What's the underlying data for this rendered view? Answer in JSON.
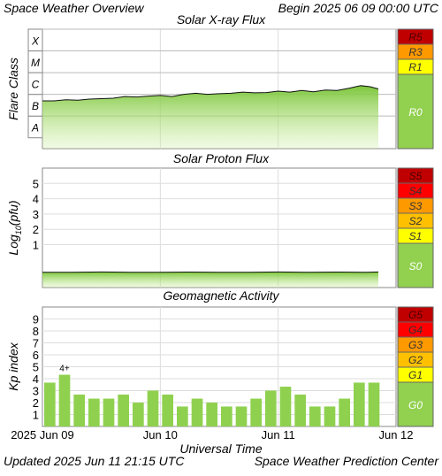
{
  "header": {
    "title": "Space Weather Overview",
    "begin": "Begin 2025 06 09 00:00 UTC"
  },
  "footer": {
    "updated": "Updated 2025 Jun 11 21:15 UTC",
    "center": "Space Weather Prediction Center"
  },
  "colors": {
    "green_fill": "#8fd14f",
    "scale_green": "#92d050",
    "scale_yellow": "#ffff00",
    "scale_gold": "#ffc000",
    "scale_orange": "#ff9900",
    "scale_red": "#ff0000",
    "scale_darkred": "#c00000",
    "grid": "#dddddd"
  },
  "chart_data": [
    {
      "type": "area",
      "title": "Solar X-ray Flux",
      "ylabel": "Flare Class",
      "y_classes": [
        "A",
        "B",
        "C",
        "M",
        "X"
      ],
      "ylim": [
        -8.5,
        -3
      ],
      "y_scale": "log10 flux (W/m2)",
      "x_ticks": [
        "2025 Jun 09",
        "Jun 10",
        "Jun 11",
        "Jun 12"
      ],
      "x_range_days": [
        0,
        3
      ],
      "series": [
        {
          "x": [
            0.0,
            0.1,
            0.2,
            0.3,
            0.4,
            0.5,
            0.6,
            0.7,
            0.8,
            0.9,
            1.0,
            1.1,
            1.2,
            1.3,
            1.4,
            1.5,
            1.6,
            1.7,
            1.8,
            1.9,
            2.0,
            2.1,
            2.2,
            2.3,
            2.4,
            2.5,
            2.6,
            2.7,
            2.78,
            2.85
          ],
          "y": [
            -6.3,
            -6.3,
            -6.25,
            -6.27,
            -6.22,
            -6.2,
            -6.18,
            -6.1,
            -6.12,
            -6.08,
            -6.05,
            -6.1,
            -6.0,
            -5.95,
            -6.0,
            -5.97,
            -5.95,
            -5.9,
            -5.93,
            -5.92,
            -5.85,
            -5.9,
            -5.82,
            -5.88,
            -5.8,
            -5.82,
            -5.72,
            -5.6,
            -5.65,
            -5.75
          ]
        }
      ],
      "scale_levels": [
        {
          "label": "R5",
          "color": "#c00000"
        },
        {
          "label": "R3",
          "color": "#ff9900"
        },
        {
          "label": "R1",
          "color": "#ffff00"
        },
        {
          "label": "R0",
          "color": "#92d050"
        }
      ]
    },
    {
      "type": "area",
      "title": "Solar Proton Flux",
      "ylabel": "Log10(pfu)",
      "yticks": [
        1,
        2,
        3,
        4,
        5
      ],
      "ylim": [
        -1.8,
        6
      ],
      "x_ticks": [
        "2025 Jun 09",
        "Jun 10",
        "Jun 11",
        "Jun 12"
      ],
      "x_range_days": [
        0,
        3
      ],
      "series": [
        {
          "x": [
            0.0,
            0.25,
            0.5,
            0.75,
            1.0,
            1.25,
            1.5,
            1.75,
            2.0,
            2.25,
            2.5,
            2.75,
            2.85
          ],
          "y": [
            -0.8,
            -0.8,
            -0.78,
            -0.8,
            -0.8,
            -0.79,
            -0.8,
            -0.8,
            -0.78,
            -0.8,
            -0.79,
            -0.8,
            -0.78
          ]
        }
      ],
      "scale_levels": [
        {
          "label": "S5",
          "color": "#c00000"
        },
        {
          "label": "S4",
          "color": "#ff0000"
        },
        {
          "label": "S3",
          "color": "#ff9900"
        },
        {
          "label": "S2",
          "color": "#ffc000"
        },
        {
          "label": "S1",
          "color": "#ffff00"
        },
        {
          "label": "S0",
          "color": "#92d050"
        }
      ]
    },
    {
      "type": "bar",
      "title": "Geomagnetic Activity",
      "ylabel": "Kp index",
      "xlabel": "Universal Time",
      "yticks": [
        1,
        2,
        3,
        4,
        5,
        6,
        7,
        8,
        9
      ],
      "ylim": [
        0,
        10
      ],
      "x_ticks": [
        "2025 Jun 09",
        "Jun 10",
        "Jun 11",
        "Jun 12"
      ],
      "values": [
        3.67,
        4.33,
        2.67,
        2.33,
        2.33,
        2.67,
        2.0,
        3.0,
        2.67,
        1.67,
        2.33,
        2.0,
        1.67,
        1.67,
        2.33,
        3.0,
        3.33,
        2.67,
        1.67,
        1.67,
        2.33,
        3.67,
        3.67
      ],
      "annotations": [
        {
          "bar_index": 1,
          "text": "4+"
        }
      ],
      "scale_levels": [
        {
          "label": "G5",
          "color": "#c00000"
        },
        {
          "label": "G4",
          "color": "#ff0000"
        },
        {
          "label": "G3",
          "color": "#ff9900"
        },
        {
          "label": "G2",
          "color": "#ffc000"
        },
        {
          "label": "G1",
          "color": "#ffff00"
        },
        {
          "label": "G0",
          "color": "#92d050"
        }
      ]
    }
  ]
}
